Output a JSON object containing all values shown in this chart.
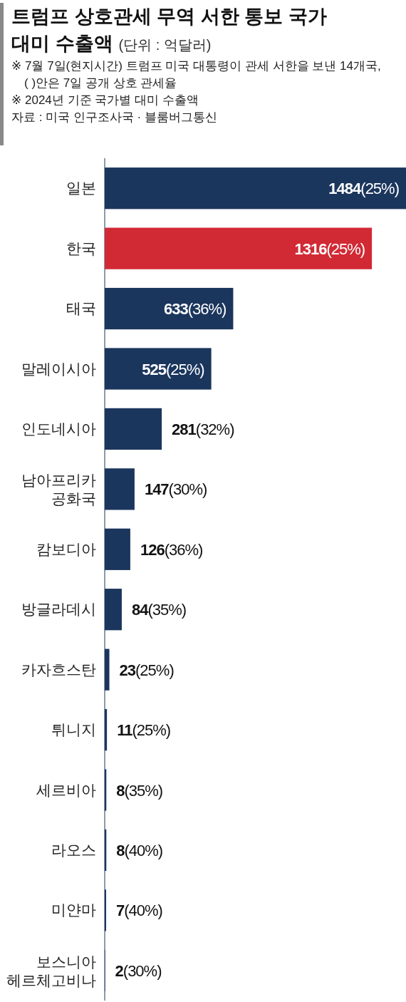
{
  "chart_data": {
    "type": "bar",
    "orientation": "horizontal",
    "title": "트럼프 상호관세 무역 서한 통보 국가 대미 수출액",
    "subtitle": "(단위 : 억달러)",
    "annotations": [
      "※ 7월 7일(현지시간) 트럼프 미국 대통령이 관세 서한을 보낸 14개국, ( )안은 7일 공개 상호 관세율",
      "※ 2024년 기준 국가별 대미 수출액",
      "자료 : 미국 인구조사국 · 블룸버그통신"
    ],
    "categories": [
      "일본",
      "한국",
      "태국",
      "말레이시아",
      "인도네시아",
      "남아프리카 공화국",
      "캄보디아",
      "방글라데시",
      "카자흐스탄",
      "튀니지",
      "세르비아",
      "라오스",
      "미얀마",
      "보스니아 헤르체고비나"
    ],
    "values": [
      1484,
      1316,
      633,
      525,
      281,
      147,
      126,
      84,
      23,
      11,
      8,
      8,
      7,
      2
    ],
    "colors": [
      "#1b365d",
      "#d12a35",
      "#1b365d",
      "#1b365d",
      "#1b365d",
      "#1b365d",
      "#1b365d",
      "#1b365d",
      "#1b365d",
      "#1b365d",
      "#1b365d",
      "#1b365d",
      "#1b365d",
      "#1b365d"
    ],
    "value_labels": [
      "1484(25%)",
      "1316(25%)",
      "633(36%)",
      "525(25%)",
      "281(32%)",
      "147(30%)",
      "126(36%)",
      "84(35%)",
      "23(25%)",
      "11(25%)",
      "8(35%)",
      "8(40%)",
      "7(40%)",
      "2(30%)"
    ]
  }
}
